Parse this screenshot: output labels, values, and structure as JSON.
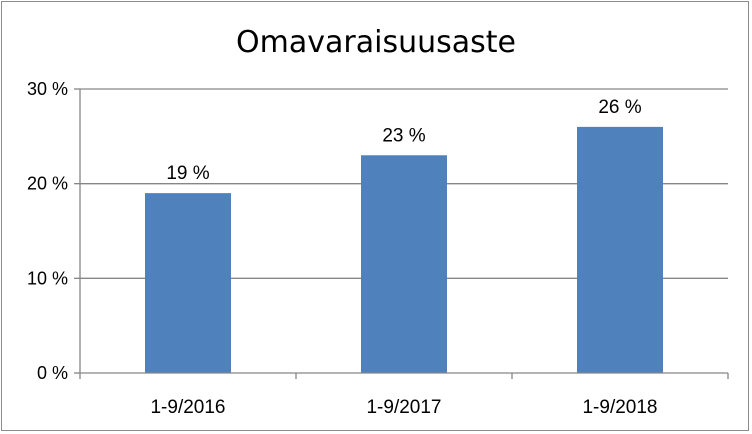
{
  "chart_data": {
    "type": "bar",
    "title": "Omavaraisuusaste",
    "xlabel": "",
    "ylabel": "",
    "categories": [
      "1-9/2016",
      "1-9/2017",
      "1-9/2018"
    ],
    "values": [
      19,
      23,
      26
    ],
    "data_labels": [
      "19 %",
      "23 %",
      "26 %"
    ],
    "ylim": [
      0,
      30
    ],
    "yticks": [
      0,
      10,
      20,
      30
    ],
    "ytick_labels": [
      "0 %",
      "10 %",
      "20 %",
      "30 %"
    ],
    "grid": true,
    "legend": "none",
    "bar_color": "#4F81BD"
  }
}
